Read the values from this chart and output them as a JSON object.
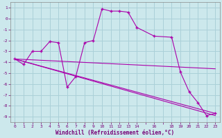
{
  "xlabel": "Windchill (Refroidissement éolien,°C)",
  "bg_color": "#cce8ec",
  "grid_color": "#aad0d8",
  "line_color": "#aa00aa",
  "spine_color": "#888888",
  "tick_color": "#770077",
  "xlim": [
    -0.5,
    23.5
  ],
  "ylim": [
    -9.5,
    1.5
  ],
  "xticks_all": [
    0,
    1,
    2,
    3,
    4,
    5,
    6,
    7,
    8,
    9,
    10,
    11,
    12,
    13,
    14,
    15,
    16,
    17,
    18,
    19,
    20,
    21,
    22,
    23
  ],
  "xtick_labels": [
    "0",
    "1",
    "2",
    "3",
    "4",
    "5",
    "6",
    "7",
    "8",
    "9",
    "10",
    "11",
    "12",
    "13",
    "14",
    "",
    "16",
    "",
    "18",
    "19",
    "20",
    "21",
    "22",
    "23"
  ],
  "yticks": [
    -9,
    -8,
    -7,
    -6,
    -5,
    -4,
    -3,
    -2,
    -1,
    0,
    1
  ],
  "curve1_x": [
    0,
    1,
    2,
    3,
    4,
    5,
    6,
    7,
    8,
    9,
    10,
    11,
    12,
    13,
    14,
    16,
    18,
    19,
    20,
    21,
    22,
    23
  ],
  "curve1_y": [
    -3.7,
    -4.2,
    -3.0,
    -3.0,
    -2.1,
    -2.2,
    -6.3,
    -5.3,
    -2.2,
    -2.0,
    0.9,
    0.7,
    0.7,
    0.6,
    -0.8,
    -1.6,
    -1.7,
    -4.9,
    -6.7,
    -7.7,
    -8.9,
    -8.7
  ],
  "curve2_x": [
    0,
    23
  ],
  "curve2_y": [
    -3.7,
    -8.7
  ],
  "curve3_x": [
    0,
    23
  ],
  "curve3_y": [
    -3.7,
    -4.6
  ],
  "curve4_x": [
    0,
    23
  ],
  "curve4_y": [
    -3.7,
    -8.9
  ]
}
